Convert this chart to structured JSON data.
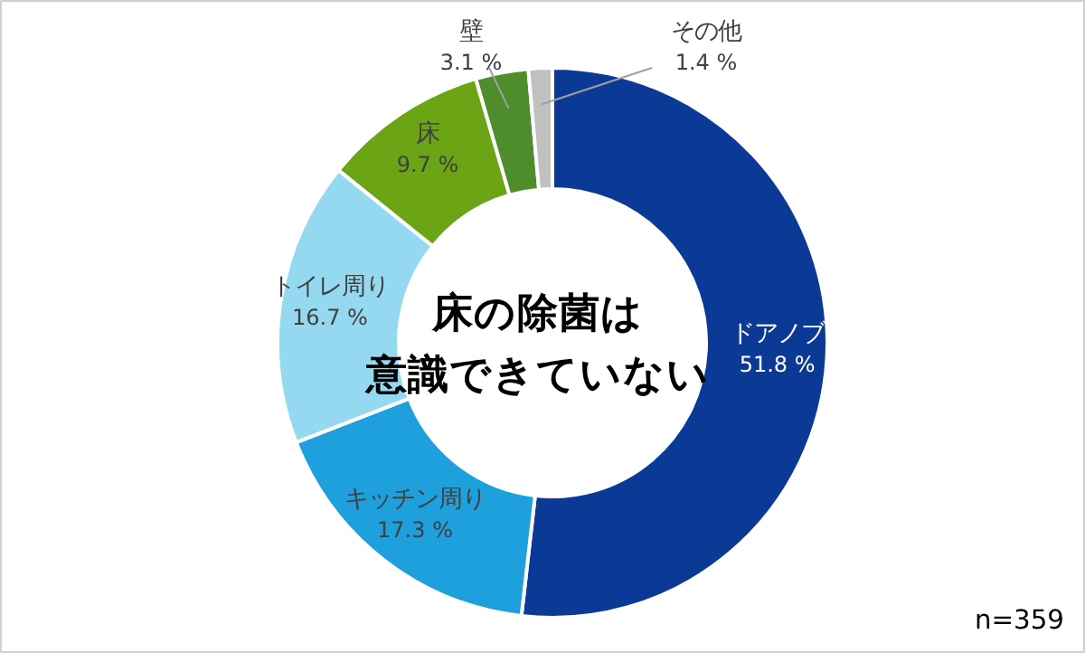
{
  "chart_data": {
    "type": "donut",
    "categories": [
      "ドアノブ",
      "キッチン周り",
      "トイレ周り",
      "床",
      "壁",
      "その他"
    ],
    "values": [
      51.8,
      17.3,
      16.7,
      9.7,
      3.1,
      1.4
    ],
    "colors": [
      "#0b3a96",
      "#1ea0dc",
      "#94d9ef",
      "#6ba516",
      "#4e8c2c",
      "#c0c0c0"
    ],
    "value_labels": [
      "51.8 %",
      "17.3 %",
      "16.7 %",
      "9.7 %",
      "3.1 %",
      "1.4 %"
    ],
    "annotations": [
      "床の除菌は",
      "意識できていない",
      "n=359"
    ]
  }
}
